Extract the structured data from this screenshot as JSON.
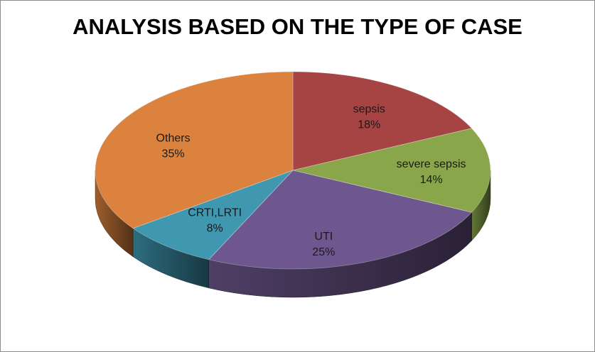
{
  "chart_data": {
    "type": "pie",
    "title": "ANALYSIS BASED ON THE TYPE OF CASE",
    "three_d": true,
    "legend": "none",
    "slices": [
      {
        "name": "sepsis",
        "value": 18,
        "label": "18%",
        "color": "#a64343"
      },
      {
        "name": "severe sepsis",
        "value": 14,
        "label": "14%",
        "color": "#8aa64b"
      },
      {
        "name": "UTI",
        "value": 25,
        "label": "25%",
        "color": "#6e578e"
      },
      {
        "name": "CRTI,LRTI",
        "value": 8,
        "label": "8%",
        "color": "#3f97b0"
      },
      {
        "name": "Others",
        "value": 35,
        "label": "35%",
        "color": "#db823e"
      }
    ]
  }
}
